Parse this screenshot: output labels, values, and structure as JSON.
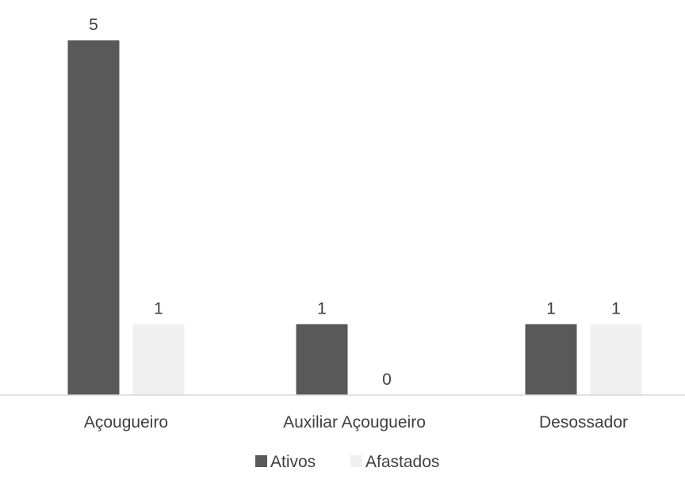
{
  "chart_data": {
    "type": "bar",
    "categories": [
      "Açougueiro",
      "Auxiliar Açougueiro",
      "Desossador"
    ],
    "series": [
      {
        "name": "Ativos",
        "values": [
          5,
          1,
          1
        ],
        "color": "#595959"
      },
      {
        "name": "Afastados",
        "values": [
          1,
          0,
          1
        ],
        "color": "#f0f0f0"
      }
    ],
    "ylim": [
      0,
      5
    ],
    "grid": false,
    "data_labels": true,
    "legend_position": "bottom",
    "axis_color": "#d9d9d9",
    "label_color": "#404040"
  }
}
